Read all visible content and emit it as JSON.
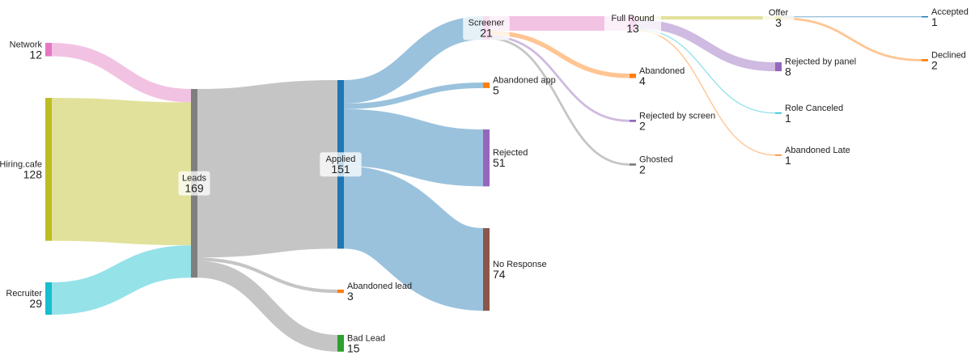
{
  "chart_data": {
    "type": "sankey",
    "link_opacity": 0.45,
    "nodes": [
      {
        "name": "Network",
        "value": 12,
        "color": "#e377c2"
      },
      {
        "name": "Hiring.cafe",
        "value": 128,
        "color": "#bcbd22"
      },
      {
        "name": "Recruiter",
        "value": 29,
        "color": "#17becf"
      },
      {
        "name": "Leads",
        "value": 169,
        "color": "#7f7f7f"
      },
      {
        "name": "Applied",
        "value": 151,
        "color": "#1f77b4"
      },
      {
        "name": "Abandoned lead",
        "value": 3,
        "color": "#ff7f0e"
      },
      {
        "name": "Bad Lead",
        "value": 15,
        "color": "#2ca02c"
      },
      {
        "name": "Screener",
        "value": 21,
        "color": "#e377c2"
      },
      {
        "name": "Abandoned app",
        "value": 5,
        "color": "#ff7f0e"
      },
      {
        "name": "Rejected",
        "value": 51,
        "color": "#9467bd"
      },
      {
        "name": "No Response",
        "value": 74,
        "color": "#8c564b"
      },
      {
        "name": "Full Round",
        "value": 13,
        "color": "#e377c2"
      },
      {
        "name": "Abandoned",
        "value": 4,
        "color": "#ff7f0e"
      },
      {
        "name": "Rejected by screen",
        "value": 2,
        "color": "#9467bd"
      },
      {
        "name": "Ghosted",
        "value": 2,
        "color": "#7f7f7f"
      },
      {
        "name": "Offer",
        "value": 3,
        "color": "#bcbd22"
      },
      {
        "name": "Rejected by panel",
        "value": 8,
        "color": "#9467bd"
      },
      {
        "name": "Role Canceled",
        "value": 1,
        "color": "#17becf"
      },
      {
        "name": "Abandoned Late",
        "value": 1,
        "color": "#ff7f0e"
      },
      {
        "name": "Accepted",
        "value": 1,
        "color": "#1f77b4"
      },
      {
        "name": "Declined",
        "value": 2,
        "color": "#ff7f0e"
      }
    ],
    "links": [
      {
        "source": "Network",
        "target": "Leads",
        "value": 12,
        "color": "#e377c2"
      },
      {
        "source": "Hiring.cafe",
        "target": "Leads",
        "value": 128,
        "color": "#bcbd22"
      },
      {
        "source": "Recruiter",
        "target": "Leads",
        "value": 29,
        "color": "#17becf"
      },
      {
        "source": "Leads",
        "target": "Applied",
        "value": 151,
        "color": "#7f7f7f"
      },
      {
        "source": "Leads",
        "target": "Abandoned lead",
        "value": 3,
        "color": "#7f7f7f"
      },
      {
        "source": "Leads",
        "target": "Bad Lead",
        "value": 15,
        "color": "#7f7f7f"
      },
      {
        "source": "Applied",
        "target": "Screener",
        "value": 21,
        "color": "#1f77b4"
      },
      {
        "source": "Applied",
        "target": "Abandoned app",
        "value": 5,
        "color": "#1f77b4"
      },
      {
        "source": "Applied",
        "target": "Rejected",
        "value": 51,
        "color": "#1f77b4"
      },
      {
        "source": "Applied",
        "target": "No Response",
        "value": 74,
        "color": "#1f77b4"
      },
      {
        "source": "Screener",
        "target": "Full Round",
        "value": 13,
        "color": "#e377c2"
      },
      {
        "source": "Screener",
        "target": "Abandoned",
        "value": 4,
        "color": "#ff7f0e"
      },
      {
        "source": "Screener",
        "target": "Rejected by screen",
        "value": 2,
        "color": "#9467bd"
      },
      {
        "source": "Screener",
        "target": "Ghosted",
        "value": 2,
        "color": "#7f7f7f"
      },
      {
        "source": "Full Round",
        "target": "Offer",
        "value": 3,
        "color": "#bcbd22"
      },
      {
        "source": "Full Round",
        "target": "Rejected by panel",
        "value": 8,
        "color": "#9467bd"
      },
      {
        "source": "Full Round",
        "target": "Role Canceled",
        "value": 1,
        "color": "#17becf"
      },
      {
        "source": "Full Round",
        "target": "Abandoned Late",
        "value": 1,
        "color": "#ff7f0e"
      },
      {
        "source": "Offer",
        "target": "Accepted",
        "value": 1,
        "color": "#1f77b4"
      },
      {
        "source": "Offer",
        "target": "Declined",
        "value": 2,
        "color": "#ff7f0e"
      }
    ]
  }
}
